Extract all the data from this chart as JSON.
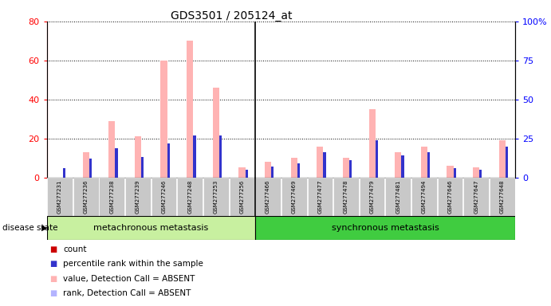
{
  "title": "GDS3501 / 205124_at",
  "samples": [
    "GSM277231",
    "GSM277236",
    "GSM277238",
    "GSM277239",
    "GSM277246",
    "GSM277248",
    "GSM277253",
    "GSM277256",
    "GSM277466",
    "GSM277469",
    "GSM277477",
    "GSM277478",
    "GSM277479",
    "GSM277481",
    "GSM277494",
    "GSM277646",
    "GSM277647",
    "GSM277648"
  ],
  "absent_value": [
    0,
    13,
    29,
    21,
    60,
    70,
    46,
    5,
    8,
    10,
    16,
    10,
    35,
    13,
    16,
    6,
    5,
    19
  ],
  "absent_rank": [
    6,
    12,
    19,
    13,
    22,
    27,
    27,
    5,
    7,
    9,
    16,
    11,
    24,
    14,
    16,
    6,
    5,
    20
  ],
  "present_value": [
    0,
    0,
    0,
    0,
    0,
    0,
    0,
    0,
    0,
    0,
    0,
    0,
    0,
    0,
    0,
    0,
    0,
    0
  ],
  "present_rank": [
    6,
    12,
    19,
    13,
    22,
    27,
    27,
    5,
    7,
    9,
    16,
    11,
    24,
    14,
    16,
    6,
    5,
    20
  ],
  "group1_count": 8,
  "group2_count": 10,
  "group1_label": "metachronous metastasis",
  "group2_label": "synchronous metastasis",
  "ylim_left": [
    0,
    80
  ],
  "ylim_right": [
    0,
    100
  ],
  "yticks_left": [
    0,
    20,
    40,
    60,
    80
  ],
  "ytick_labels_left": [
    "0",
    "20",
    "40",
    "60",
    "80"
  ],
  "yticks_right": [
    0,
    25,
    50,
    75,
    100
  ],
  "ytick_labels_right": [
    "0",
    "25",
    "50",
    "75",
    "100%"
  ],
  "color_absent_value": "#ffb3b3",
  "color_absent_rank": "#b3b3ff",
  "color_present_value": "#cc0000",
  "color_present_rank": "#3333cc",
  "color_group1_bg": "#c8f0a0",
  "color_group2_bg": "#40cc40",
  "color_sample_bg": "#c8c8c8",
  "legend": [
    {
      "label": "count",
      "color": "#cc0000"
    },
    {
      "label": "percentile rank within the sample",
      "color": "#3333cc"
    },
    {
      "label": "value, Detection Call = ABSENT",
      "color": "#ffb3b3"
    },
    {
      "label": "rank, Detection Call = ABSENT",
      "color": "#b3b3ff"
    }
  ]
}
